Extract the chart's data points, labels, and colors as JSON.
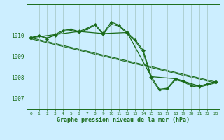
{
  "background_color": "#cceeff",
  "plot_bg_color": "#cceeff",
  "grid_color": "#aacccc",
  "line_color": "#1a6b1a",
  "xlabel": "Graphe pression niveau de la mer (hPa)",
  "xlim": [
    -0.5,
    23.5
  ],
  "ylim": [
    1006.5,
    1011.5
  ],
  "yticks": [
    1007,
    1008,
    1009,
    1010
  ],
  "xticks": [
    0,
    1,
    2,
    3,
    4,
    5,
    6,
    7,
    8,
    9,
    10,
    11,
    12,
    13,
    14,
    15,
    16,
    17,
    18,
    19,
    20,
    21,
    22,
    23
  ],
  "series_main": {
    "x": [
      0,
      1,
      2,
      3,
      4,
      5,
      6,
      7,
      8,
      9,
      10,
      11,
      12,
      13,
      14,
      15,
      16,
      17,
      18,
      19,
      20,
      21,
      22,
      23
    ],
    "y": [
      1009.9,
      1010.0,
      1009.85,
      1010.05,
      1010.25,
      1010.3,
      1010.2,
      1010.35,
      1010.55,
      1010.1,
      1010.65,
      1010.5,
      1010.15,
      1009.8,
      1009.3,
      1008.05,
      1007.45,
      1007.5,
      1007.95,
      1007.85,
      1007.65,
      1007.6,
      1007.7,
      1007.8
    ]
  },
  "series_smooth": {
    "x": [
      0,
      1,
      2,
      3,
      4,
      5,
      6,
      7,
      8,
      9,
      10,
      11,
      12,
      13,
      14,
      15,
      16,
      17,
      18,
      19,
      20,
      21,
      22,
      23
    ],
    "y": [
      1009.9,
      1010.0,
      1009.9,
      1010.0,
      1010.2,
      1010.25,
      1010.15,
      1010.3,
      1010.5,
      1010.05,
      1010.55,
      1010.45,
      1010.1,
      1009.75,
      1009.2,
      1007.95,
      1007.4,
      1007.45,
      1007.9,
      1007.8,
      1007.6,
      1007.55,
      1007.65,
      1007.75
    ]
  },
  "series_3h": {
    "x": [
      0,
      3,
      6,
      9,
      12,
      15,
      18,
      21,
      23
    ],
    "y": [
      1009.9,
      1010.05,
      1010.2,
      1010.1,
      1010.15,
      1008.05,
      1007.95,
      1007.6,
      1007.8
    ]
  },
  "trend_line1": {
    "x": [
      0,
      23
    ],
    "y": [
      1009.9,
      1007.8
    ]
  },
  "trend_line2": {
    "x": [
      0,
      23
    ],
    "y": [
      1009.85,
      1007.75
    ]
  }
}
